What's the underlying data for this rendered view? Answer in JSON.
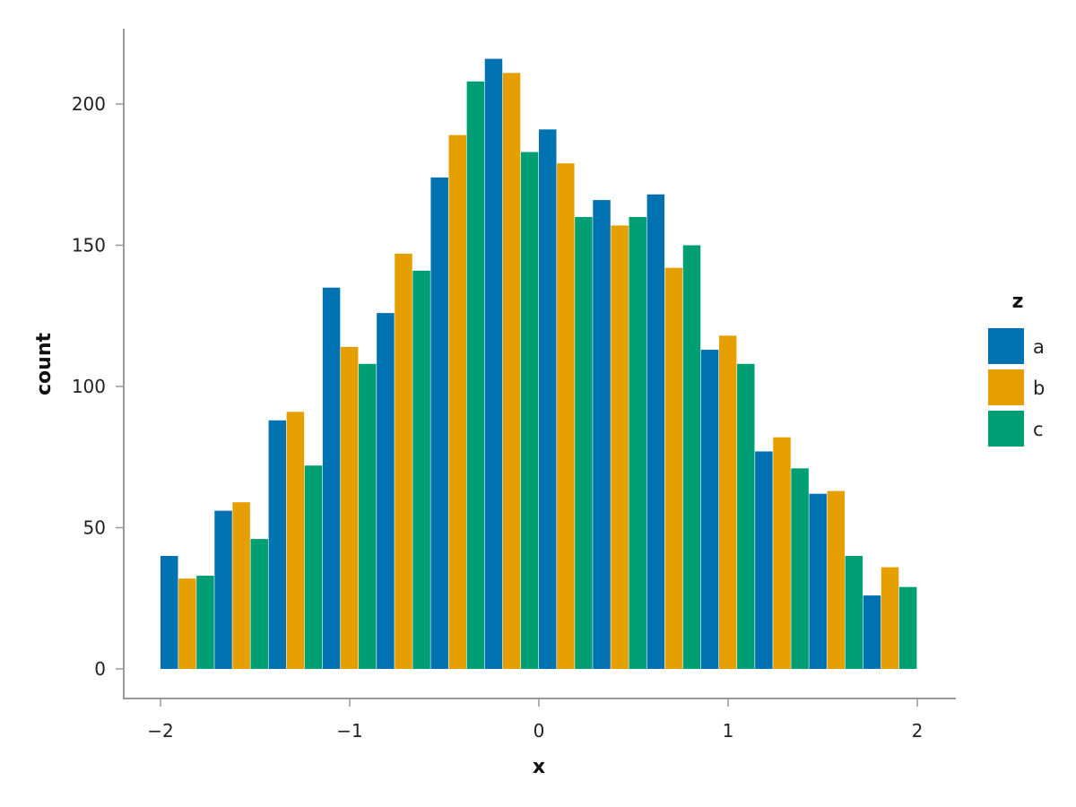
{
  "chart_data": {
    "type": "bar",
    "title": "",
    "xlabel": "x",
    "ylabel": "count",
    "xlim": [
      -2.2,
      2.2
    ],
    "ylim": [
      -10,
      225
    ],
    "x_ticks": [
      -2,
      -1,
      0,
      1,
      2
    ],
    "x_tick_labels": [
      "−2",
      "−1",
      "0",
      "1",
      "2"
    ],
    "y_ticks": [
      0,
      50,
      100,
      150,
      200
    ],
    "y_tick_labels": [
      "0",
      "50",
      "100",
      "150",
      "200"
    ],
    "grid": false,
    "legend": {
      "title": "z",
      "position": "right"
    },
    "bin_width": 0.2857,
    "bin_starts": [
      -2.0,
      -1.7143,
      -1.4286,
      -1.1429,
      -0.8571,
      -0.5714,
      -0.2857,
      0.0,
      0.2857,
      0.5714,
      0.8571,
      1.1429,
      1.4286,
      1.7143
    ],
    "series": [
      {
        "name": "a",
        "color": "#0072B2",
        "values": [
          40,
          56,
          88,
          135,
          126,
          174,
          216,
          191,
          166,
          168,
          113,
          77,
          62,
          26
        ]
      },
      {
        "name": "b",
        "color": "#E69F00",
        "values": [
          32,
          59,
          91,
          114,
          147,
          189,
          211,
          179,
          157,
          142,
          118,
          82,
          63,
          36
        ]
      },
      {
        "name": "c",
        "color": "#009E73",
        "values": [
          33,
          46,
          72,
          108,
          141,
          208,
          183,
          160,
          160,
          150,
          108,
          71,
          40,
          29
        ]
      }
    ]
  }
}
